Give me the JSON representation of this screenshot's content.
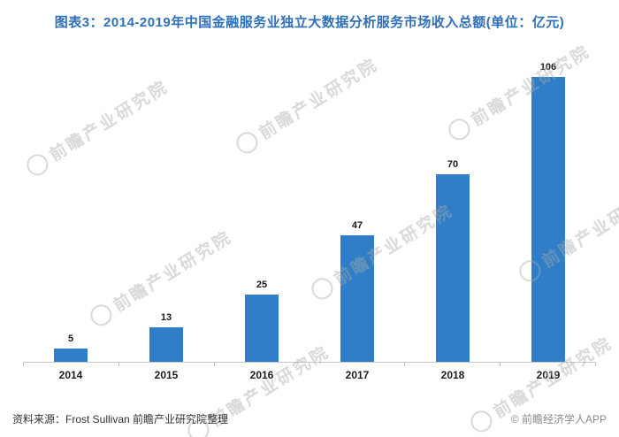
{
  "title": "图表3：2014-2019年中国金融服务业独立大数据分析服务市场收入总额(单位：亿元)",
  "chart_data": {
    "type": "bar",
    "categories": [
      "2014",
      "2015",
      "2016",
      "2017",
      "2018",
      "2019"
    ],
    "values": [
      5,
      13,
      25,
      47,
      70,
      106
    ],
    "title": "图表3：2014-2019年中国金融服务业独立大数据分析服务市场收入总额(单位：亿元)",
    "xlabel": "",
    "ylabel": "",
    "ylim": [
      0,
      112
    ],
    "grid": false,
    "legend": "none",
    "bar_color": "#2f7ec7"
  },
  "footer": {
    "source": "资料来源：Frost Sullivan 前瞻产业研究院整理",
    "credit": "© 前瞻经济学人APP"
  },
  "watermark": {
    "text": "前瞻产业研究院"
  },
  "colors": {
    "title": "#2e6fb7",
    "bar": "#2f7ec7",
    "axis": "#c8c8c8",
    "watermark": "#aaaaaa"
  }
}
